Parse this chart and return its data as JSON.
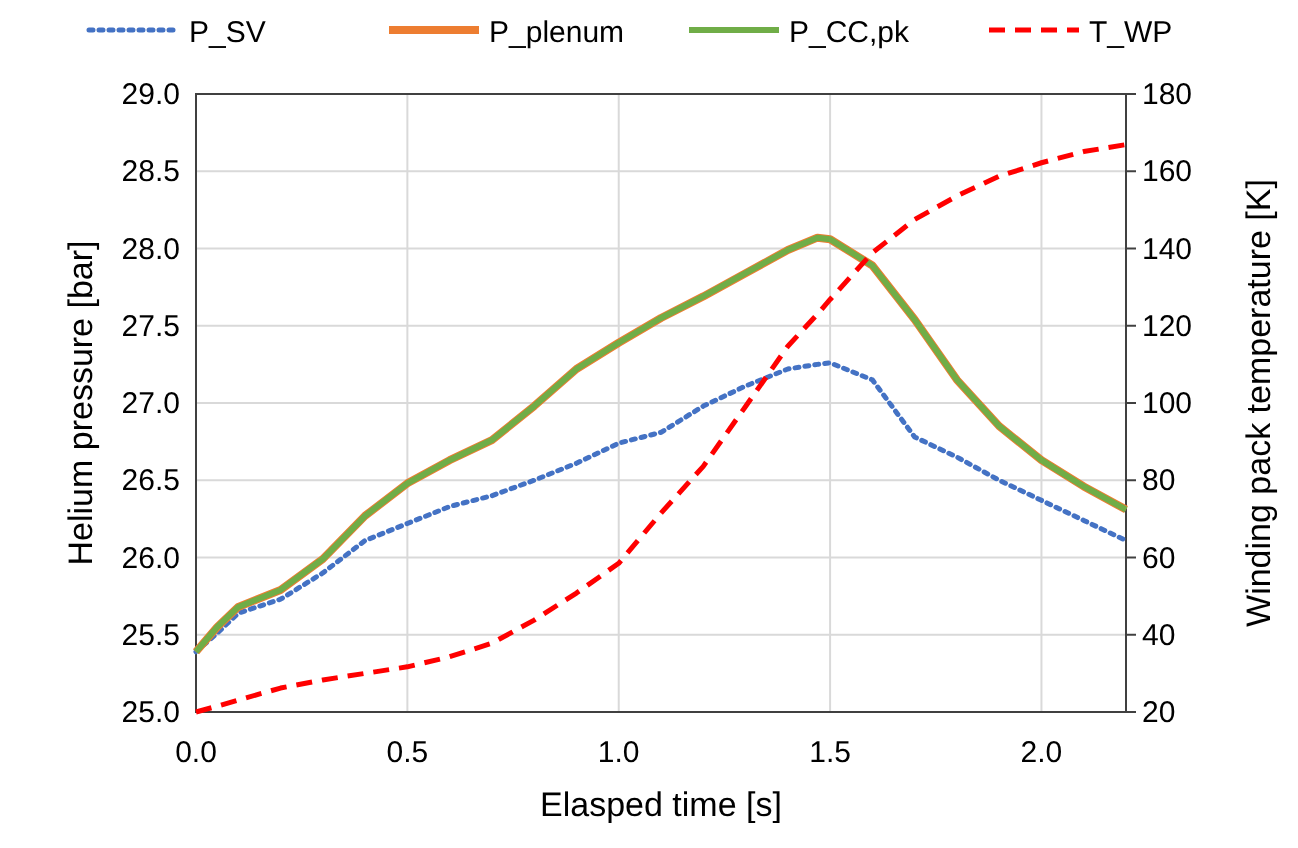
{
  "chart_data": {
    "type": "line",
    "xlabel": "Elasped time [s]",
    "ylabel": "Helium pressure [bar]",
    "y2label": "Winding pack temperature [K]",
    "x": [
      0,
      0.05,
      0.1,
      0.2,
      0.3,
      0.4,
      0.5,
      0.6,
      0.7,
      0.8,
      0.9,
      1.0,
      1.1,
      1.2,
      1.3,
      1.4,
      1.47,
      1.5,
      1.6,
      1.7,
      1.8,
      1.9,
      2.0,
      2.1,
      2.2
    ],
    "xlim": [
      0,
      2.2
    ],
    "xticks": [
      {
        "value": 0,
        "label": "0.0"
      },
      0.5,
      {
        "value": 1,
        "label": "1.0"
      },
      1.5,
      {
        "value": 2,
        "label": "2.0"
      }
    ],
    "ylim": [
      25,
      29
    ],
    "yticks": [
      {
        "value": 25,
        "label": "25.0"
      },
      25.5,
      {
        "value": 26,
        "label": "26.0"
      },
      26.5,
      {
        "value": 27,
        "label": "27.0"
      },
      27.5,
      {
        "value": 28,
        "label": "28.0"
      },
      28.5,
      {
        "value": 29,
        "label": "29.0"
      }
    ],
    "y2lim": [
      20,
      180
    ],
    "y2ticks": [
      20,
      40,
      60,
      80,
      100,
      120,
      140,
      160,
      180
    ],
    "grid": true,
    "legend": "top",
    "series": [
      {
        "name": "P_SV",
        "color": "#4472c4",
        "line_style": "dotted",
        "values": [
          25.39,
          25.51,
          25.64,
          25.73,
          25.9,
          26.11,
          26.22,
          26.33,
          26.4,
          26.5,
          26.61,
          26.74,
          26.81,
          26.98,
          27.11,
          27.22,
          27.25,
          27.26,
          27.15,
          26.78,
          26.65,
          26.5,
          26.37,
          26.24,
          26.11
        ]
      },
      {
        "name": "P_plenum",
        "color": "#ed7d31",
        "line_style": "solid",
        "values": [
          25.39,
          25.55,
          25.68,
          25.79,
          25.99,
          26.27,
          26.48,
          26.63,
          26.76,
          26.98,
          27.22,
          27.39,
          27.55,
          27.69,
          27.84,
          27.99,
          28.07,
          28.06,
          27.89,
          27.54,
          27.15,
          26.85,
          26.63,
          26.46,
          26.31
        ]
      },
      {
        "name": "P_CC,pk",
        "color": "#70ad47",
        "line_style": "solid",
        "values": [
          25.39,
          25.55,
          25.68,
          25.79,
          25.99,
          26.27,
          26.48,
          26.63,
          26.76,
          26.98,
          27.22,
          27.39,
          27.55,
          27.69,
          27.84,
          27.99,
          28.07,
          28.06,
          27.89,
          27.54,
          27.15,
          26.85,
          26.63,
          26.46,
          26.31
        ]
      },
      {
        "name": "T_WP",
        "color": "#ff0000",
        "line_style": "dashed",
        "axis": "y2",
        "values": [
          20,
          21.5,
          23.1,
          26.2,
          28.3,
          30,
          31.7,
          34.3,
          37.8,
          43.8,
          50.8,
          58.5,
          71.5,
          83.6,
          99.1,
          114.7,
          123,
          126.8,
          138.9,
          147.5,
          153.6,
          158.7,
          162.2,
          165.1,
          166.9
        ]
      }
    ]
  }
}
